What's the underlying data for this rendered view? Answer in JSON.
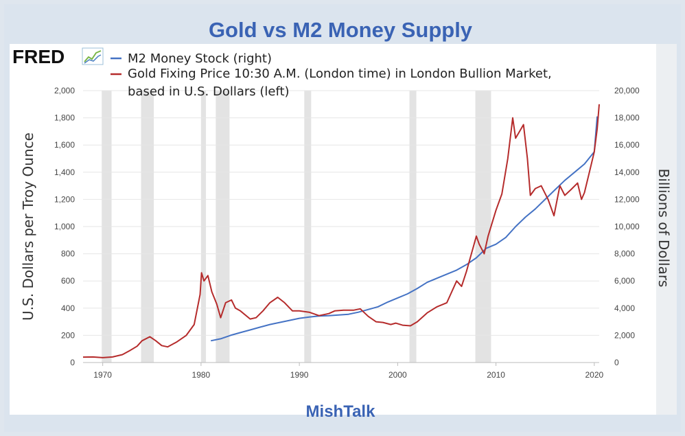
{
  "chart_data": {
    "type": "line",
    "title": "Gold vs M2 Money Supply",
    "footer": "MishTalk",
    "brand": "FRED",
    "ylabel_left": "U.S. Dollars per Troy Ounce",
    "ylabel_right": "Billions of Dollars",
    "ylim_left": [
      0,
      2000
    ],
    "ylim_right": [
      0,
      20000
    ],
    "xlim": [
      1968,
      2020.5
    ],
    "x_ticks": [
      "1970",
      "1980",
      "1990",
      "2000",
      "2010",
      "2020"
    ],
    "y_ticks_left": [
      "0",
      "200",
      "400",
      "600",
      "800",
      "1,000",
      "1,200",
      "1,400",
      "1,600",
      "1,800",
      "2,000"
    ],
    "y_ticks_right": [
      "0",
      "2,000",
      "4,000",
      "6,000",
      "8,000",
      "10,000",
      "12,000",
      "14,000",
      "16,000",
      "18,000",
      "20,000"
    ],
    "legend_position": "top-left",
    "grid": true,
    "recessions": [
      [
        1969.9,
        1970.9
      ],
      [
        1973.9,
        1975.2
      ],
      [
        1980.0,
        1980.5
      ],
      [
        1981.5,
        1982.9
      ],
      [
        1990.5,
        1991.2
      ],
      [
        2001.2,
        2001.9
      ],
      [
        2007.9,
        2009.5
      ]
    ],
    "series": [
      {
        "name": "M2 Money Stock (right)",
        "axis": "right",
        "color": "#4472c4",
        "x": [
          1981.0,
          1982,
          1983,
          1984,
          1985,
          1986,
          1987,
          1988,
          1989,
          1990,
          1991,
          1992,
          1993,
          1994,
          1995,
          1996,
          1997,
          1998,
          1999,
          2000,
          2001,
          2002,
          2003,
          2004,
          2005,
          2006,
          2007,
          2008,
          2009,
          2010,
          2011,
          2012,
          2013,
          2014,
          2015,
          2016,
          2017,
          2018,
          2019,
          2020.0,
          2020.3
        ],
        "y": [
          1600,
          1750,
          2000,
          2200,
          2400,
          2600,
          2800,
          2950,
          3100,
          3250,
          3350,
          3420,
          3450,
          3500,
          3550,
          3700,
          3900,
          4100,
          4450,
          4750,
          5050,
          5450,
          5900,
          6200,
          6500,
          6800,
          7200,
          7700,
          8400,
          8700,
          9200,
          10000,
          10700,
          11300,
          12000,
          12700,
          13400,
          14000,
          14600,
          15500,
          18100
        ]
      },
      {
        "name": "Gold Fixing Price 10:30 A.M. (London time) in London Bullion Market, based in U.S. Dollars (left)",
        "axis": "left",
        "color": "#b52b2b",
        "x": [
          1968.0,
          1969,
          1970,
          1971,
          1972,
          1972.8,
          1973.5,
          1974.0,
          1974.8,
          1975.4,
          1976.0,
          1976.6,
          1977.5,
          1978.5,
          1979.3,
          1979.9,
          1980.05,
          1980.3,
          1980.7,
          1981.1,
          1981.6,
          1982.0,
          1982.5,
          1983.1,
          1983.5,
          1984.0,
          1985.0,
          1985.6,
          1986.3,
          1987.0,
          1987.8,
          1988.5,
          1989.3,
          1990.0,
          1991.0,
          1992.0,
          1993.0,
          1993.6,
          1994.5,
          1995.5,
          1996.2,
          1997.0,
          1997.8,
          1998.5,
          1999.3,
          1999.8,
          2000.5,
          2001.3,
          2002.0,
          2003.0,
          2004.0,
          2005.0,
          2006.0,
          2006.5,
          2007.0,
          2007.5,
          2008.0,
          2008.3,
          2008.8,
          2009.2,
          2010.0,
          2010.6,
          2011.2,
          2011.7,
          2012.0,
          2012.4,
          2012.8,
          2013.2,
          2013.5,
          2014.0,
          2014.6,
          2015.3,
          2015.9,
          2016.5,
          2017.0,
          2017.6,
          2018.3,
          2018.7,
          2019.0,
          2019.5,
          2020.0,
          2020.3,
          2020.5
        ],
        "y": [
          40,
          41,
          36,
          41,
          58,
          90,
          120,
          160,
          190,
          160,
          125,
          115,
          150,
          200,
          280,
          500,
          660,
          600,
          640,
          520,
          430,
          330,
          440,
          460,
          400,
          380,
          320,
          330,
          380,
          440,
          480,
          440,
          380,
          380,
          370,
          345,
          360,
          380,
          385,
          385,
          395,
          340,
          300,
          295,
          280,
          290,
          275,
          270,
          300,
          365,
          410,
          440,
          600,
          560,
          670,
          800,
          930,
          870,
          800,
          930,
          1120,
          1240,
          1500,
          1800,
          1650,
          1700,
          1750,
          1500,
          1230,
          1280,
          1300,
          1200,
          1080,
          1300,
          1230,
          1270,
          1320,
          1200,
          1250,
          1400,
          1550,
          1720,
          1900
        ]
      }
    ]
  }
}
